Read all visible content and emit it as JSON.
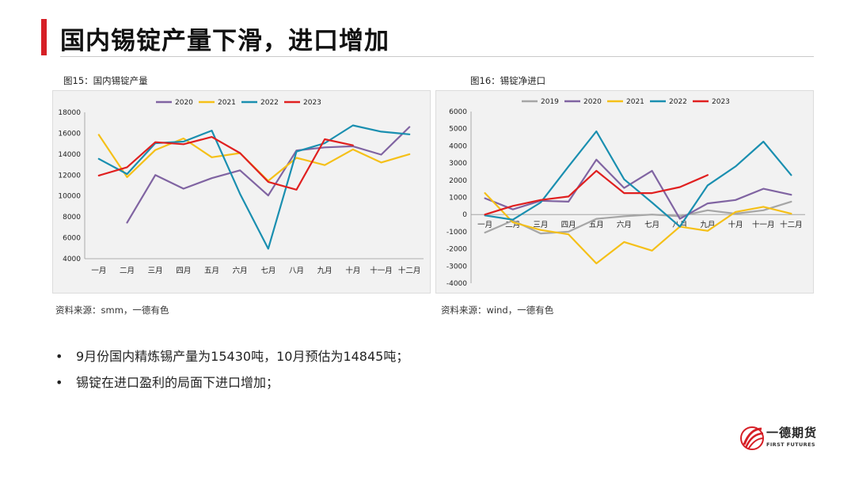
{
  "header": {
    "title": "国内锡锭产量下滑，进口增加"
  },
  "charts": [
    {
      "caption": "图15：国内锡锭产量",
      "source": "资料来源：smm，一德有色",
      "chart_data": {
        "type": "line",
        "categories": [
          "一月",
          "二月",
          "三月",
          "四月",
          "五月",
          "六月",
          "七月",
          "八月",
          "九月",
          "十月",
          "十一月",
          "十二月"
        ],
        "ylim": [
          4000,
          18000
        ],
        "yticks": [
          4000,
          6000,
          8000,
          10000,
          12000,
          14000,
          16000,
          18000
        ],
        "legend_position": "top",
        "grid": false,
        "series": [
          {
            "name": "2020",
            "color": "#8064a2",
            "values": [
              null,
              7450,
              12000,
              10700,
              11700,
              12450,
              10050,
              14350,
              14650,
              14750,
              13950,
              16600
            ]
          },
          {
            "name": "2021",
            "color": "#f5c018",
            "values": [
              15850,
              11800,
              14400,
              15500,
              13700,
              14100,
              11450,
              13650,
              12950,
              14450,
              13200,
              14000
            ]
          },
          {
            "name": "2022",
            "color": "#1a8fb0",
            "values": [
              13550,
              12100,
              15050,
              15200,
              16250,
              10200,
              4950,
              14250,
              15050,
              16750,
              16150,
              15900
            ]
          },
          {
            "name": "2023",
            "color": "#e02020",
            "values": [
              11950,
              12750,
              15150,
              14950,
              15650,
              14100,
              11350,
              10600,
              15430,
              14845,
              null,
              null
            ]
          }
        ]
      }
    },
    {
      "caption": "图16：锡锭净进口",
      "source": "资料来源：wind，一德有色",
      "chart_data": {
        "type": "line",
        "categories": [
          "一月",
          "二月",
          "三月",
          "四月",
          "五月",
          "六月",
          "七月",
          "八月",
          "九月",
          "十月",
          "十一月",
          "十二月"
        ],
        "ylim": [
          -4000,
          6000
        ],
        "yticks": [
          -4000,
          -3000,
          -2000,
          -1000,
          0,
          1000,
          2000,
          3000,
          4000,
          5000,
          6000
        ],
        "legend_position": "top",
        "grid": false,
        "series": [
          {
            "name": "2019",
            "color": "#a6a6a6",
            "values": [
              -1050,
              -350,
              -1100,
              -1000,
              -250,
              -100,
              0,
              -100,
              250,
              50,
              250,
              750
            ]
          },
          {
            "name": "2020",
            "color": "#8064a2",
            "values": [
              950,
              300,
              800,
              750,
              3200,
              1550,
              2550,
              -250,
              650,
              850,
              1500,
              1150
            ]
          },
          {
            "name": "2021",
            "color": "#f5c018",
            "values": [
              1250,
              -450,
              -900,
              -1150,
              -2850,
              -1600,
              -2100,
              -700,
              -950,
              150,
              450,
              50
            ]
          },
          {
            "name": "2022",
            "color": "#1a8fb0",
            "values": [
              -50,
              -300,
              700,
              2800,
              4850,
              2050,
              700,
              -700,
              1700,
              2800,
              4250,
              2300
            ]
          },
          {
            "name": "2023",
            "color": "#e02020",
            "values": [
              0,
              500,
              850,
              1050,
              2550,
              1250,
              1250,
              1600,
              2300,
              null,
              null,
              null
            ]
          }
        ]
      }
    }
  ],
  "bullets": [
    "9月份国内精炼锡产量为15430吨，10月预估为14845吨；",
    "锡锭在进口盈利的局面下进口增加；"
  ],
  "bullet_symbol": "•",
  "logo": {
    "name": "一德期货",
    "sub": "FIRST FUTURES"
  }
}
